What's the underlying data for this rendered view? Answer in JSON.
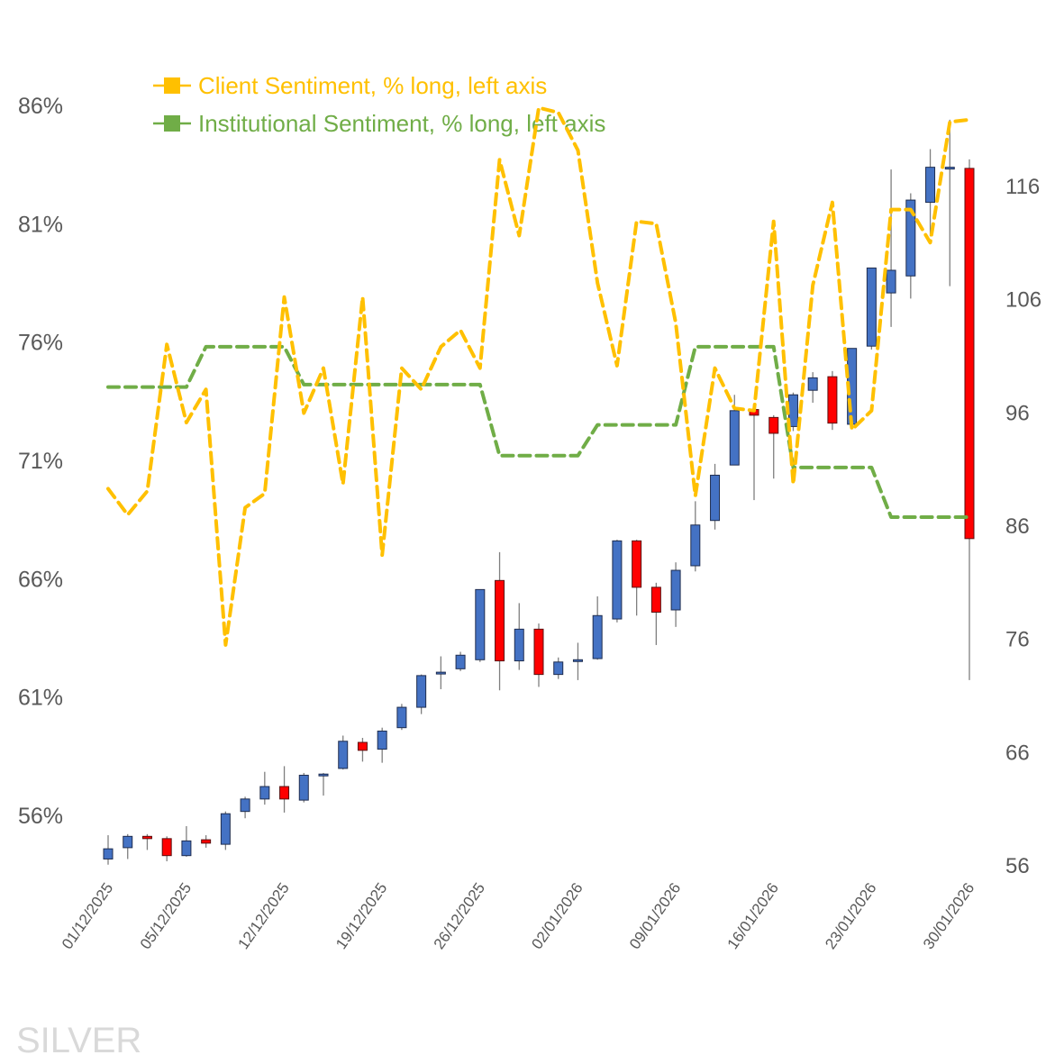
{
  "chart_data": {
    "type": "candlestick+line",
    "title": "",
    "watermark": "SILVER",
    "legend": {
      "placement": "top-left",
      "entries": [
        {
          "label": "Client Sentiment, % long, left axis",
          "color": "#FFC000",
          "style": "dashed"
        },
        {
          "label": "Institutional Sentiment, % long, left axis",
          "color": "#70AD47",
          "style": "dashed"
        }
      ]
    },
    "left_axis": {
      "label": "",
      "ticks": [
        "86%",
        "81%",
        "76%",
        "71%",
        "66%",
        "61%",
        "56%"
      ],
      "tick_values": [
        86,
        81,
        76,
        71,
        66,
        61,
        56
      ],
      "range": [
        56,
        86
      ]
    },
    "right_axis": {
      "label": "",
      "ticks": [
        "116",
        "106",
        "96",
        "86",
        "76",
        "66",
        "56"
      ],
      "tick_values": [
        116,
        106,
        96,
        86,
        76,
        66,
        56
      ],
      "range": [
        56,
        116
      ]
    },
    "x_tick_labels": [
      "01/12/2025",
      "05/12/2025",
      "12/12/2025",
      "19/12/2025",
      "26/12/2025",
      "02/01/2026",
      "09/01/2026",
      "16/01/2026",
      "23/01/2026",
      "30/01/2026"
    ],
    "x_tick_indices": [
      0,
      4,
      9,
      14,
      19,
      24,
      29,
      34,
      39,
      44
    ],
    "colors": {
      "up": "#4472C4",
      "down": "#FF0000",
      "wick": "#7F7F7F",
      "outline": "#1F2D4F",
      "client": "#FFC000",
      "institutional": "#70AD47",
      "axis_text": "#595959",
      "watermark": "#D9D9D9"
    },
    "candles": [
      {
        "o": 56.6,
        "c": 57.5,
        "h": 58.7,
        "l": 56.1
      },
      {
        "o": 57.6,
        "c": 58.6,
        "h": 58.8,
        "l": 56.6
      },
      {
        "o": 58.6,
        "c": 58.4,
        "h": 58.8,
        "l": 57.4
      },
      {
        "o": 58.4,
        "c": 56.9,
        "h": 58.6,
        "l": 56.4
      },
      {
        "o": 56.9,
        "c": 58.2,
        "h": 59.5,
        "l": 56.8
      },
      {
        "o": 58.3,
        "c": 58.0,
        "h": 58.7,
        "l": 57.6
      },
      {
        "o": 57.9,
        "c": 60.6,
        "h": 60.8,
        "l": 57.4
      },
      {
        "o": 60.8,
        "c": 61.9,
        "h": 62.1,
        "l": 60.2
      },
      {
        "o": 61.9,
        "c": 63.0,
        "h": 64.3,
        "l": 61.4
      },
      {
        "o": 63.0,
        "c": 61.9,
        "h": 64.8,
        "l": 60.7
      },
      {
        "o": 61.8,
        "c": 64.0,
        "h": 64.2,
        "l": 61.6
      },
      {
        "o": 64.0,
        "c": 64.1,
        "h": 64.2,
        "l": 62.2
      },
      {
        "o": 64.6,
        "c": 67.0,
        "h": 67.5,
        "l": 64.5
      },
      {
        "o": 66.9,
        "c": 66.2,
        "h": 67.3,
        "l": 65.2
      },
      {
        "o": 66.3,
        "c": 67.9,
        "h": 68.2,
        "l": 65.1
      },
      {
        "o": 68.2,
        "c": 70.0,
        "h": 70.3,
        "l": 68.0
      },
      {
        "o": 70.0,
        "c": 72.8,
        "h": 72.9,
        "l": 69.4
      },
      {
        "o": 73.0,
        "c": 73.1,
        "h": 74.5,
        "l": 71.6
      },
      {
        "o": 73.4,
        "c": 74.6,
        "h": 74.9,
        "l": 73.2
      },
      {
        "o": 74.2,
        "c": 80.4,
        "h": 80.4,
        "l": 74.0
      },
      {
        "o": 81.2,
        "c": 74.1,
        "h": 83.7,
        "l": 71.5
      },
      {
        "o": 74.1,
        "c": 76.9,
        "h": 79.2,
        "l": 73.3
      },
      {
        "o": 76.9,
        "c": 72.9,
        "h": 77.4,
        "l": 71.8
      },
      {
        "o": 72.9,
        "c": 74.0,
        "h": 74.4,
        "l": 72.5
      },
      {
        "o": 74.1,
        "c": 74.2,
        "h": 75.7,
        "l": 72.4
      },
      {
        "o": 74.3,
        "c": 78.1,
        "h": 79.8,
        "l": 74.2
      },
      {
        "o": 77.8,
        "c": 84.7,
        "h": 84.8,
        "l": 77.5
      },
      {
        "o": 84.7,
        "c": 80.6,
        "h": 84.8,
        "l": 78.1
      },
      {
        "o": 80.6,
        "c": 78.4,
        "h": 81.0,
        "l": 75.5
      },
      {
        "o": 78.6,
        "c": 82.1,
        "h": 82.8,
        "l": 77.1
      },
      {
        "o": 82.5,
        "c": 86.1,
        "h": 88.2,
        "l": 82.0
      },
      {
        "o": 86.5,
        "c": 90.5,
        "h": 91.5,
        "l": 85.7
      },
      {
        "o": 91.4,
        "c": 96.2,
        "h": 97.6,
        "l": 91.4
      },
      {
        "o": 96.3,
        "c": 95.8,
        "h": 96.6,
        "l": 88.3
      },
      {
        "o": 95.6,
        "c": 94.2,
        "h": 95.8,
        "l": 90.2
      },
      {
        "o": 94.8,
        "c": 97.6,
        "h": 97.8,
        "l": 94.4
      },
      {
        "o": 98.0,
        "c": 99.1,
        "h": 99.6,
        "l": 96.9
      },
      {
        "o": 99.2,
        "c": 95.1,
        "h": 99.7,
        "l": 94.5
      },
      {
        "o": 95.0,
        "c": 101.7,
        "h": 101.7,
        "l": 94.9
      },
      {
        "o": 101.9,
        "c": 108.8,
        "h": 108.8,
        "l": 101.6
      },
      {
        "o": 106.6,
        "c": 108.6,
        "h": 117.5,
        "l": 103.6
      },
      {
        "o": 108.1,
        "c": 114.8,
        "h": 115.4,
        "l": 106.1
      },
      {
        "o": 114.6,
        "c": 117.7,
        "h": 119.3,
        "l": 111.6
      },
      {
        "o": 117.6,
        "c": 117.7,
        "h": 121.9,
        "l": 107.2
      },
      {
        "o": 117.6,
        "c": 84.9,
        "h": 118.4,
        "l": 72.4
      }
    ],
    "series": [
      {
        "name": "Client Sentiment, % long, left axis",
        "values": [
          69.8,
          68.7,
          69.7,
          75.9,
          72.6,
          74.0,
          63.2,
          69.0,
          69.6,
          77.9,
          73.0,
          74.9,
          70.0,
          77.9,
          67.0,
          74.9,
          74.0,
          75.8,
          76.5,
          74.9,
          83.7,
          80.5,
          85.9,
          85.7,
          84.1,
          78.5,
          75.0,
          81.1,
          81.0,
          76.8,
          69.5,
          74.9,
          73.2,
          73.1,
          81.1,
          70.0,
          78.4,
          81.9,
          72.3,
          73.1,
          81.6,
          81.6,
          80.2,
          85.3,
          85.4
        ]
      },
      {
        "name": "Institutional Sentiment, % long, left axis",
        "values": [
          74.1,
          74.1,
          74.1,
          74.1,
          74.1,
          75.8,
          75.8,
          75.8,
          75.8,
          75.8,
          74.2,
          74.2,
          74.2,
          74.2,
          74.2,
          74.2,
          74.2,
          74.2,
          74.2,
          74.2,
          71.2,
          71.2,
          71.2,
          71.2,
          71.2,
          72.5,
          72.5,
          72.5,
          72.5,
          72.5,
          75.8,
          75.8,
          75.8,
          75.8,
          75.8,
          70.7,
          70.7,
          70.7,
          70.7,
          70.7,
          68.6,
          68.6,
          68.6,
          68.6,
          68.6
        ]
      }
    ]
  }
}
